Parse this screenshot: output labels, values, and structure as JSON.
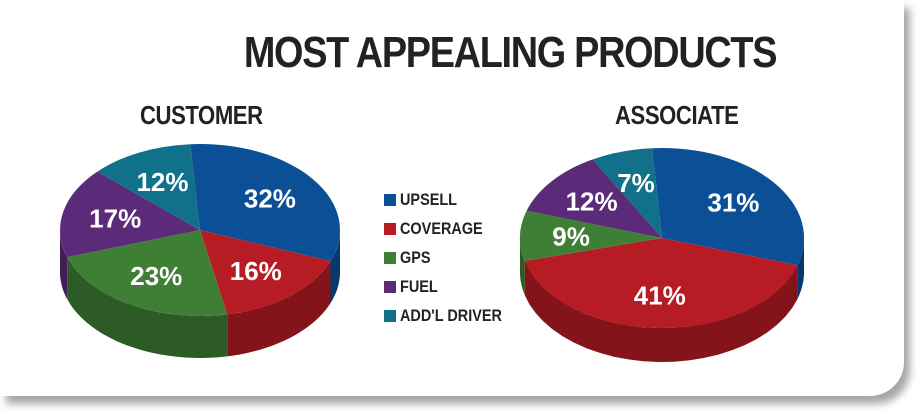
{
  "title": "MOST APPEALING PRODUCTS",
  "legend": [
    {
      "label": "UPSELL",
      "color": "#0b4f96"
    },
    {
      "label": "COVERAGE",
      "color": "#b71c24"
    },
    {
      "label": "GPS",
      "color": "#3f7f35"
    },
    {
      "label": "FUEL",
      "color": "#5b2a78"
    },
    {
      "label": "ADD'L DRIVER",
      "color": "#11708a"
    }
  ],
  "chart_data": [
    {
      "type": "pie",
      "title": "CUSTOMER",
      "categories": [
        "UPSELL",
        "COVERAGE",
        "GPS",
        "FUEL",
        "ADD'L DRIVER"
      ],
      "values": [
        32,
        16,
        23,
        17,
        12
      ],
      "labels": [
        "32%",
        "16%",
        "23%",
        "17%",
        "12%"
      ]
    },
    {
      "type": "pie",
      "title": "ASSOCIATE",
      "categories": [
        "UPSELL",
        "COVERAGE",
        "GPS",
        "FUEL",
        "ADD'L DRIVER"
      ],
      "values": [
        31,
        41,
        9,
        12,
        7
      ],
      "labels": [
        "31%",
        "41%",
        "9%",
        "12%",
        "7%"
      ]
    }
  ]
}
